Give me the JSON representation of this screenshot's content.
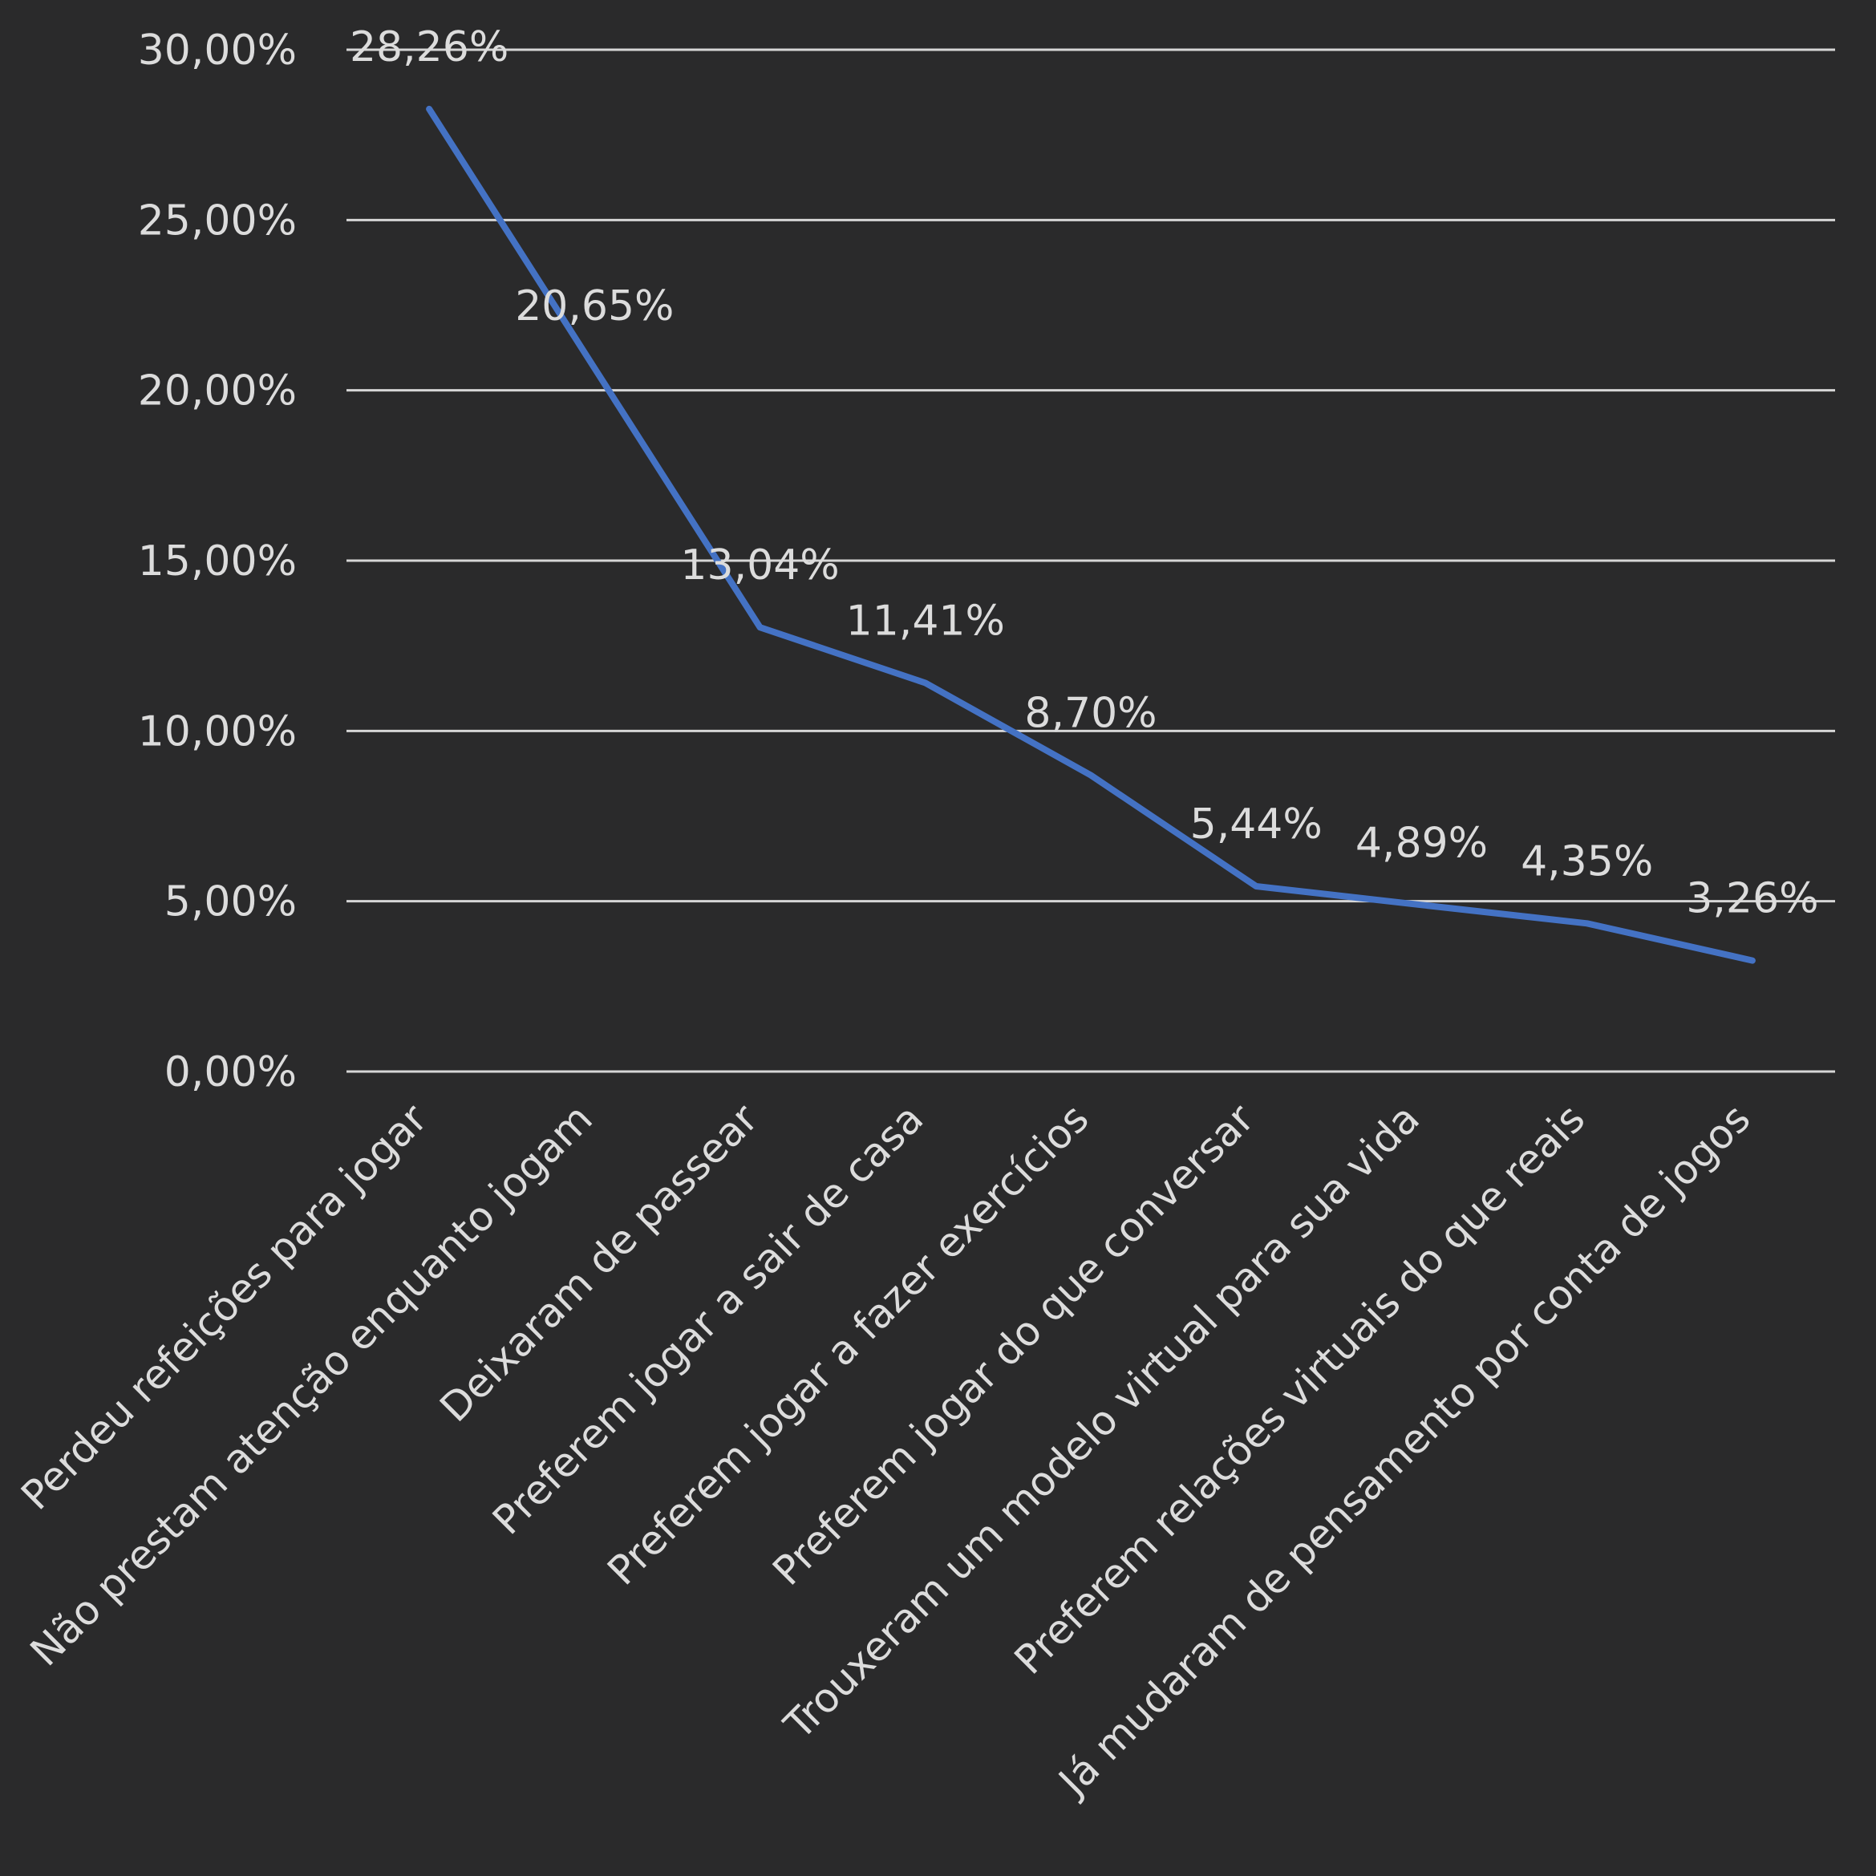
{
  "chart_data": {
    "type": "line",
    "categories": [
      "Perdeu refeições para jogar",
      "Não prestam atenção enquanto jogam",
      "Deixaram de passear",
      "Preferem jogar a sair de casa",
      "Preferem jogar a fazer exercícios",
      "Preferem jogar do que conversar",
      "Trouxeram um modelo virtual para sua vida",
      "Preferem relações virtuais do que reais",
      "Já mudaram de pensamento por conta de jogos"
    ],
    "series": [
      {
        "values": [
          28.26,
          20.65,
          13.04,
          11.41,
          8.7,
          5.44,
          4.89,
          4.35,
          3.26
        ],
        "data_labels": [
          "28,26%",
          "20,65%",
          "13,04%",
          "11,41%",
          "8,70%",
          "5,44%",
          "4,89%",
          "4,35%",
          "3,26%"
        ],
        "color": "#4472c4"
      }
    ],
    "y_ticks": [
      0,
      5,
      10,
      15,
      20,
      25,
      30
    ],
    "y_tick_labels": [
      "0,00%",
      "5,00%",
      "10,00%",
      "15,00%",
      "20,00%",
      "25,00%",
      "30,00%"
    ],
    "ylim": [
      0,
      30
    ],
    "grid": true,
    "legend": "none",
    "title": "",
    "xlabel": "",
    "ylabel": ""
  },
  "colors": {
    "background": "#2a2a2b",
    "grid": "#d6d6d6",
    "text": "#dcdcdc",
    "line": "#4472c4"
  }
}
